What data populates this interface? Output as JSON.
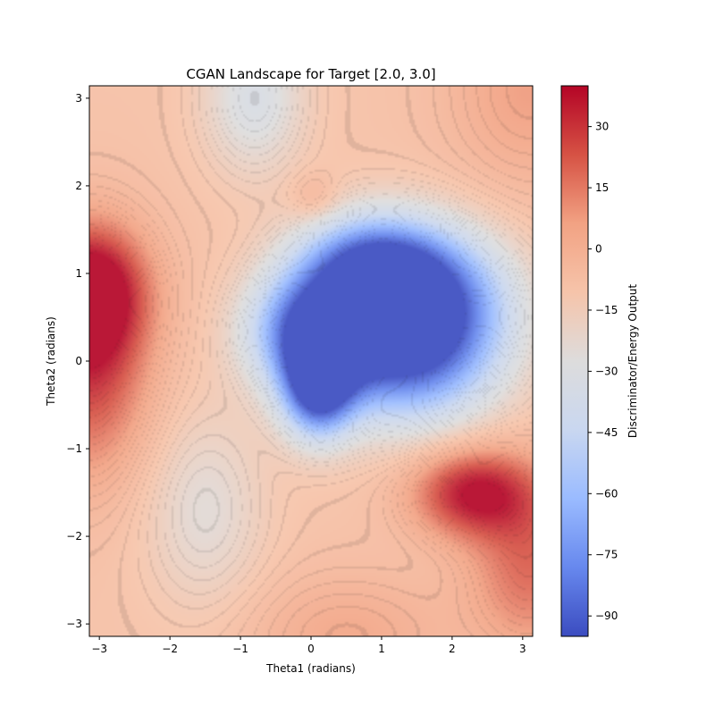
{
  "chart_data": {
    "type": "heatmap",
    "subtype": "filled-contour",
    "title": "CGAN Landscape for Target [2.0, 3.0]",
    "xlabel": "Theta1 (radians)",
    "ylabel": "Theta2 (radians)",
    "xlim": [
      -3.1416,
      3.1416
    ],
    "ylim": [
      -3.1416,
      3.1416
    ],
    "x_ticks": [
      -3,
      -2,
      -1,
      0,
      1,
      2,
      3
    ],
    "y_ticks": [
      -3,
      -2,
      -1,
      0,
      1,
      2,
      3
    ],
    "x_tick_labels": [
      "−3",
      "−2",
      "−1",
      "0",
      "1",
      "2",
      "3"
    ],
    "y_tick_labels": [
      "−3",
      "−2",
      "−1",
      "0",
      "1",
      "2",
      "3"
    ],
    "grid": false,
    "colormap": "coolwarm",
    "colormap_stops": [
      "#3b4cc0",
      "#6788ee",
      "#9abbff",
      "#c9d7f0",
      "#dddcdc",
      "#f6c4aa",
      "#f2a283",
      "#d65244",
      "#b40426"
    ],
    "z_range": [
      -95,
      40
    ],
    "colorbar": {
      "label": "Discriminator/Energy Output",
      "ticks": [
        -90,
        -75,
        -60,
        -45,
        -30,
        -15,
        0,
        15,
        30
      ],
      "tick_labels": [
        "−90",
        "−75",
        "−60",
        "−45",
        "−30",
        "−15",
        "0",
        "15",
        "30"
      ]
    },
    "base_level": -8,
    "features": [
      {
        "kind": "minimum",
        "x": 1.5,
        "y": 0.7,
        "value": -95,
        "sx": 0.85,
        "sy": 0.55
      },
      {
        "kind": "minimum",
        "x": 0.1,
        "y": -0.3,
        "value": -88,
        "sx": 0.35,
        "sy": 0.4
      },
      {
        "kind": "minimum",
        "x": 0.0,
        "y": 0.35,
        "value": -82,
        "sx": 0.6,
        "sy": 0.45
      },
      {
        "kind": "minimum",
        "x": 1.3,
        "y": 0.0,
        "value": -70,
        "sx": 0.9,
        "sy": 0.55
      },
      {
        "kind": "minimum",
        "x": 0.8,
        "y": 1.1,
        "value": -65,
        "sx": 0.7,
        "sy": 0.4
      },
      {
        "kind": "minimum",
        "x": -0.8,
        "y": 3.0,
        "value": -33,
        "sx": 0.5,
        "sy": 0.6
      },
      {
        "kind": "minimum",
        "x": -1.5,
        "y": -1.7,
        "value": -25,
        "sx": 0.6,
        "sy": 0.8
      },
      {
        "kind": "maximum",
        "x": -3.14,
        "y": 0.8,
        "value": 40,
        "sx": 0.55,
        "sy": 0.5
      },
      {
        "kind": "maximum",
        "x": -3.14,
        "y": 0.0,
        "value": 30,
        "sx": 0.6,
        "sy": 0.9
      },
      {
        "kind": "maximum",
        "x": 2.3,
        "y": -1.5,
        "value": 38,
        "sx": 0.6,
        "sy": 0.35
      },
      {
        "kind": "maximum",
        "x": 3.1,
        "y": -2.3,
        "value": 20,
        "sx": 0.6,
        "sy": 0.7
      },
      {
        "kind": "maximum",
        "x": 0.05,
        "y": 1.85,
        "value": 3,
        "sx": 0.25,
        "sy": 0.2
      },
      {
        "kind": "maximum",
        "x": 3.1,
        "y": 3.1,
        "value": 8,
        "sx": 0.8,
        "sy": 0.8
      },
      {
        "kind": "maximum",
        "x": 0.5,
        "y": -3.14,
        "value": 5,
        "sx": 1.0,
        "sy": 0.5
      }
    ]
  }
}
